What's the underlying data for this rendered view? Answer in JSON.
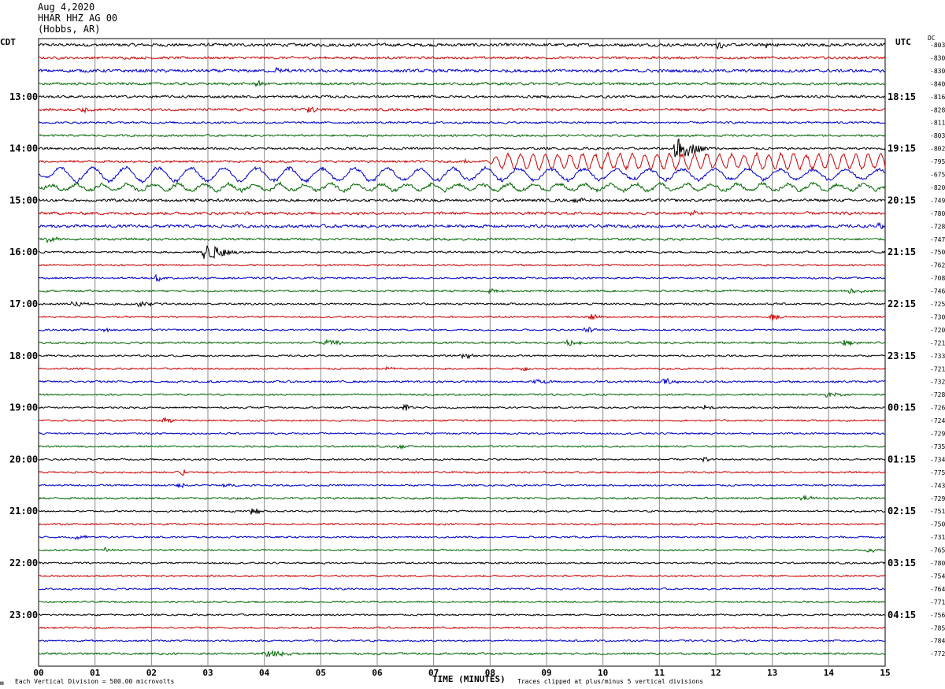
{
  "header": {
    "date": "Aug 4,2020",
    "station": "HHAR HHZ AG 00",
    "location": "(Hobbs, AR)"
  },
  "left_tz": "CDT",
  "right_tz": "UTC",
  "dc_label": "DC",
  "footer": {
    "left_mark": "ᴍ",
    "scale": "Each Vertical Division =  500.00 microvolts",
    "xlabel": "TIME (MINUTES)",
    "clip_note": "Traces clipped at plus/minus 5 vertical divisions"
  },
  "colors": {
    "cycle": [
      "#000000",
      "#cc0000",
      "#0000cc",
      "#006600"
    ],
    "grid": "#888888",
    "axis": "#000000"
  },
  "chart_data": {
    "type": "line",
    "subtype": "helicorder",
    "x_unit": "minutes",
    "xlim": [
      0,
      15
    ],
    "x_ticks": [
      "00",
      "01",
      "02",
      "03",
      "04",
      "05",
      "06",
      "07",
      "08",
      "09",
      "10",
      "11",
      "12",
      "13",
      "14",
      "15"
    ],
    "left_hour_labels": [
      {
        "row": 4,
        "text": "13:00"
      },
      {
        "row": 8,
        "text": "14:00"
      },
      {
        "row": 12,
        "text": "15:00"
      },
      {
        "row": 16,
        "text": "16:00"
      },
      {
        "row": 20,
        "text": "17:00"
      },
      {
        "row": 24,
        "text": "18:00"
      },
      {
        "row": 28,
        "text": "19:00"
      },
      {
        "row": 32,
        "text": "20:00"
      },
      {
        "row": 36,
        "text": "21:00"
      },
      {
        "row": 40,
        "text": "22:00"
      },
      {
        "row": 44,
        "text": "23:00"
      }
    ],
    "right_hour_labels": [
      {
        "row": 4,
        "text": "18:15"
      },
      {
        "row": 8,
        "text": "19:15"
      },
      {
        "row": 12,
        "text": "20:15"
      },
      {
        "row": 16,
        "text": "21:15"
      },
      {
        "row": 20,
        "text": "22:15"
      },
      {
        "row": 24,
        "text": "23:15"
      },
      {
        "row": 28,
        "text": "00:15"
      },
      {
        "row": 32,
        "text": "01:15"
      },
      {
        "row": 36,
        "text": "02:15"
      },
      {
        "row": 40,
        "text": "03:15"
      },
      {
        "row": 44,
        "text": "04:15"
      }
    ],
    "dc_offsets": [
      "-803",
      "-830",
      "-830",
      "-840",
      "-816",
      "-828",
      "-811",
      "-803",
      "-802",
      "-795",
      "-675",
      "-820",
      "-749",
      "-780",
      "-728",
      "-747",
      "-750",
      "-762",
      "-708",
      "-746",
      "-725",
      "-730",
      "-720",
      "-721",
      "-733",
      "-721",
      "-732",
      "-728",
      "-726",
      "-724",
      "-729",
      "-735",
      "-734",
      "-775",
      "-743",
      "-729",
      "-751",
      "-750",
      "-731",
      "-765",
      "-780",
      "-754",
      "-764",
      "-771",
      "-756",
      "-785",
      "-784",
      "-772"
    ],
    "rows": [
      {
        "noise": 2.4,
        "events": [
          {
            "t": 12.05,
            "amp": 4,
            "dur": 0.2
          },
          {
            "t": 12.9,
            "amp": 3,
            "dur": 0.3
          }
        ]
      },
      {
        "noise": 2.0,
        "events": []
      },
      {
        "noise": 2.4,
        "events": [
          {
            "t": 4.2,
            "amp": 3,
            "dur": 0.3
          }
        ]
      },
      {
        "noise": 2.0,
        "events": [
          {
            "t": 3.9,
            "amp": 3,
            "dur": 0.2
          }
        ]
      },
      {
        "noise": 2.0,
        "events": []
      },
      {
        "noise": 2.0,
        "events": [
          {
            "t": 0.8,
            "amp": 3,
            "dur": 0.2
          },
          {
            "t": 4.8,
            "amp": 4,
            "dur": 0.3
          }
        ]
      },
      {
        "noise": 1.6,
        "events": []
      },
      {
        "noise": 1.6,
        "events": []
      },
      {
        "noise": 1.8,
        "events": [
          {
            "t": 11.3,
            "amp": 13,
            "dur": 0.6
          }
        ]
      },
      {
        "noise": 1.8,
        "events": [
          {
            "t": 7.55,
            "amp": 6,
            "dur": 0.05
          }
        ],
        "wave": {
          "from": 7.9,
          "amp": 9,
          "period": 0.22
        }
      },
      {
        "noise": 1.8,
        "wave": {
          "from": 0,
          "amp": 9,
          "period": 0.58,
          "decay": true
        }
      },
      {
        "noise": 2.6,
        "wave": {
          "from": 0,
          "amp": 4,
          "period": 0.45
        }
      },
      {
        "noise": 2.2,
        "events": [
          {
            "t": 9.5,
            "amp": 3,
            "dur": 0.4
          }
        ]
      },
      {
        "noise": 2.2,
        "events": [
          {
            "t": 11.6,
            "amp": 3,
            "dur": 0.3
          }
        ]
      },
      {
        "noise": 2.4,
        "events": [
          {
            "t": 14.9,
            "amp": 3,
            "dur": 0.2
          }
        ]
      },
      {
        "noise": 1.8,
        "events": [
          {
            "t": 0.2,
            "amp": 4,
            "dur": 0.3
          }
        ]
      },
      {
        "noise": 1.6,
        "events": [
          {
            "t": 2.95,
            "amp": 9,
            "dur": 0.7
          }
        ]
      },
      {
        "noise": 1.4,
        "events": []
      },
      {
        "noise": 1.4,
        "events": [
          {
            "t": 2.1,
            "amp": 4,
            "dur": 0.15
          }
        ]
      },
      {
        "noise": 1.6,
        "events": [
          {
            "t": 8.0,
            "amp": 3,
            "dur": 0.3
          },
          {
            "t": 14.4,
            "amp": 3,
            "dur": 0.3
          }
        ]
      },
      {
        "noise": 1.6,
        "events": [
          {
            "t": 0.6,
            "amp": 3,
            "dur": 0.4
          },
          {
            "t": 1.8,
            "amp": 3,
            "dur": 0.3
          }
        ]
      },
      {
        "noise": 1.4,
        "events": [
          {
            "t": 9.8,
            "amp": 3,
            "dur": 0.3
          },
          {
            "t": 13.0,
            "amp": 4,
            "dur": 0.2
          }
        ]
      },
      {
        "noise": 1.4,
        "events": [
          {
            "t": 1.2,
            "amp": 3,
            "dur": 0.2
          },
          {
            "t": 9.7,
            "amp": 3,
            "dur": 0.2
          }
        ]
      },
      {
        "noise": 1.6,
        "events": [
          {
            "t": 5.1,
            "amp": 3,
            "dur": 0.4
          },
          {
            "t": 9.4,
            "amp": 3,
            "dur": 0.3
          },
          {
            "t": 14.3,
            "amp": 4,
            "dur": 0.2
          }
        ]
      },
      {
        "noise": 1.4,
        "events": [
          {
            "t": 7.5,
            "amp": 3,
            "dur": 0.3
          }
        ]
      },
      {
        "noise": 1.4,
        "events": [
          {
            "t": 6.2,
            "amp": 4,
            "dur": 0.1
          },
          {
            "t": 8.6,
            "amp": 3,
            "dur": 0.1
          }
        ]
      },
      {
        "noise": 1.6,
        "events": [
          {
            "t": 8.8,
            "amp": 3,
            "dur": 0.4
          },
          {
            "t": 11.1,
            "amp": 4,
            "dur": 0.3
          }
        ]
      },
      {
        "noise": 1.4,
        "events": [
          {
            "t": 14.0,
            "amp": 3,
            "dur": 0.3
          }
        ]
      },
      {
        "noise": 1.4,
        "events": [
          {
            "t": 6.5,
            "amp": 4,
            "dur": 0.2
          },
          {
            "t": 11.8,
            "amp": 3,
            "dur": 0.2
          }
        ]
      },
      {
        "noise": 1.4,
        "events": [
          {
            "t": 2.2,
            "amp": 3,
            "dur": 0.3
          }
        ]
      },
      {
        "noise": 1.4,
        "events": []
      },
      {
        "noise": 1.4,
        "events": [
          {
            "t": 6.4,
            "amp": 3,
            "dur": 0.2
          }
        ]
      },
      {
        "noise": 1.4,
        "events": [
          {
            "t": 11.8,
            "amp": 3,
            "dur": 0.1
          }
        ]
      },
      {
        "noise": 1.4,
        "events": [
          {
            "t": 2.55,
            "amp": 4,
            "dur": 0.05
          }
        ]
      },
      {
        "noise": 1.4,
        "events": [
          {
            "t": 2.5,
            "amp": 3,
            "dur": 0.2
          },
          {
            "t": 3.3,
            "amp": 2,
            "dur": 0.2
          }
        ]
      },
      {
        "noise": 1.6,
        "events": [
          {
            "t": 13.5,
            "amp": 3,
            "dur": 0.3
          }
        ]
      },
      {
        "noise": 1.4,
        "events": [
          {
            "t": 3.8,
            "amp": 4,
            "dur": 0.2
          }
        ]
      },
      {
        "noise": 1.4,
        "events": []
      },
      {
        "noise": 1.4,
        "events": [
          {
            "t": 0.7,
            "amp": 3,
            "dur": 0.2
          }
        ]
      },
      {
        "noise": 1.4,
        "events": [
          {
            "t": 1.2,
            "amp": 3,
            "dur": 0.1
          },
          {
            "t": 14.7,
            "amp": 3,
            "dur": 0.2
          }
        ]
      },
      {
        "noise": 1.4,
        "events": []
      },
      {
        "noise": 1.4,
        "events": []
      },
      {
        "noise": 1.4,
        "events": []
      },
      {
        "noise": 1.4,
        "events": []
      },
      {
        "noise": 1.4,
        "events": []
      },
      {
        "noise": 1.4,
        "events": []
      },
      {
        "noise": 1.4,
        "events": []
      },
      {
        "noise": 1.6,
        "events": [
          {
            "t": 4.0,
            "amp": 4,
            "dur": 0.6
          }
        ]
      }
    ]
  }
}
